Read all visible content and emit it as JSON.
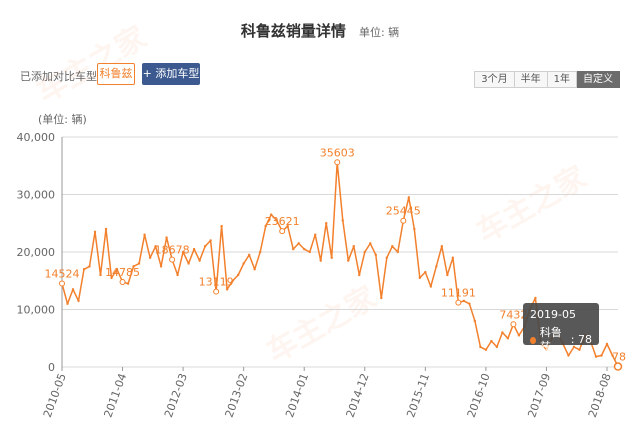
{
  "header": {
    "title": "科鲁兹销量详情",
    "unit_label": "单位: 辆"
  },
  "compare": {
    "label": "已添加对比车型:",
    "selected_model": "科鲁兹",
    "add_button": "+ 添加车型"
  },
  "range_options": [
    {
      "label": "3个月",
      "active": false
    },
    {
      "label": "半年",
      "active": false
    },
    {
      "label": "1年",
      "active": false
    },
    {
      "label": "自定义",
      "active": true
    }
  ],
  "tooltip": {
    "date": "2019-05",
    "series": "科鲁兹",
    "separator": " : ",
    "value": "78"
  },
  "colors": {
    "line": "#f2802c",
    "grid": "#d8d8d8",
    "axis_text": "#666666",
    "add_button": "#3c5a8f"
  },
  "chart_data": {
    "type": "line",
    "title": "科鲁兹销量详情",
    "ylabel": "(单位: 辆)",
    "ylim": [
      0,
      40000
    ],
    "yticks": [
      "0",
      "10,000",
      "20,000",
      "30,000",
      "40,000"
    ],
    "xtick_labels": [
      "2010-05",
      "2011-04",
      "2012-03",
      "2013-02",
      "2014-01",
      "2014-12",
      "2015-11",
      "2016-10",
      "2017-09",
      "2018-08"
    ],
    "grid": true,
    "series": [
      {
        "name": "科鲁兹",
        "start": "2010-05",
        "values": [
          14524,
          11000,
          13500,
          11500,
          17000,
          17500,
          23500,
          16000,
          24000,
          15500,
          17000,
          14785,
          14500,
          17500,
          18000,
          23000,
          19000,
          21000,
          17500,
          22500,
          18678,
          16000,
          20000,
          18000,
          20500,
          18500,
          21000,
          22000,
          13119,
          24500,
          13500,
          15000,
          16000,
          18000,
          19500,
          17000,
          20000,
          24500,
          26500,
          25500,
          23621,
          24500,
          20500,
          21500,
          20500,
          20000,
          23000,
          18500,
          25000,
          19000,
          35603,
          25500,
          18500,
          21000,
          16000,
          20000,
          21500,
          19500,
          12000,
          19000,
          21000,
          20000,
          25445,
          29500,
          24000,
          15500,
          16500,
          14000,
          17500,
          21000,
          16000,
          19000,
          11191,
          11500,
          11000,
          8000,
          3500,
          3000,
          4500,
          3500,
          6000,
          5000,
          7432,
          5500,
          7000,
          10000,
          12000,
          4000,
          3000,
          5000,
          6000,
          4000,
          2000,
          3500,
          3000,
          5500,
          4500,
          1800,
          2000,
          4000,
          2000,
          78
        ]
      }
    ],
    "data_labels": [
      {
        "label": "14524",
        "index": 0
      },
      {
        "label": "14785",
        "index": 11
      },
      {
        "label": "18678",
        "index": 20
      },
      {
        "label": "13119",
        "index": 28
      },
      {
        "label": "23621",
        "index": 40
      },
      {
        "label": "35603",
        "index": 50
      },
      {
        "label": "25445",
        "index": 62
      },
      {
        "label": "11191",
        "index": 72
      },
      {
        "label": "7432",
        "index": 82
      },
      {
        "label": "78",
        "index": 101
      }
    ]
  }
}
